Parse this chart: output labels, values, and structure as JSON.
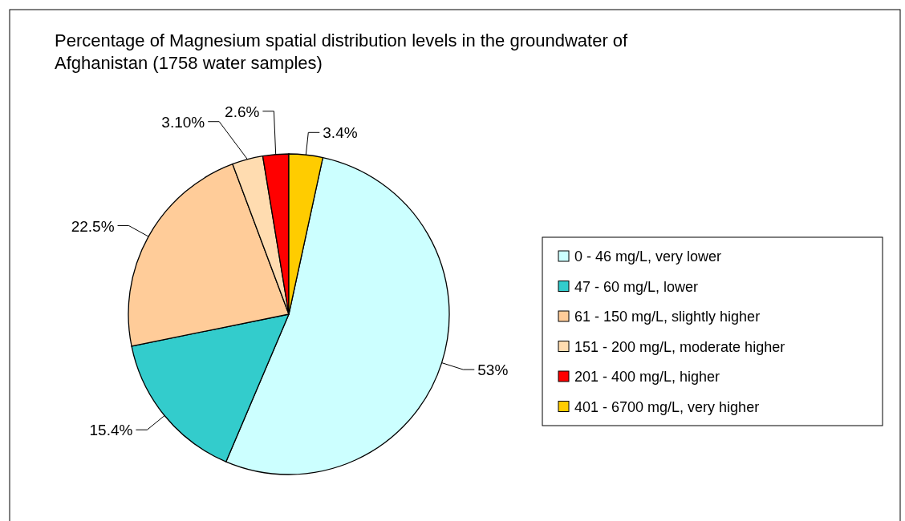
{
  "chart_data": {
    "type": "pie",
    "title": "Percentage of Magnesium spatial distribution levels in  the groundwater  of Afghanistan (1758 water samples)",
    "categories": [
      "0 - 46 mg/L, very lower",
      "47 - 60 mg/L, lower",
      "61 - 150  mg/L, slightly higher",
      "151 - 200 mg/L, moderate higher",
      "201 - 400 mg/L, higher",
      "401 - 6700 mg/L, very higher"
    ],
    "values": [
      53,
      15.4,
      22.5,
      3.1,
      2.6,
      3.4
    ],
    "value_labels": [
      "53%",
      "15.4%",
      "22.5%",
      "3.10%",
      "2.6%",
      "3.4%"
    ],
    "colors": [
      "#ccffff",
      "#33cccc",
      "#ffcc99",
      "#ffdcb0",
      "#ff0000",
      "#ffcc00"
    ],
    "legend": "right"
  }
}
